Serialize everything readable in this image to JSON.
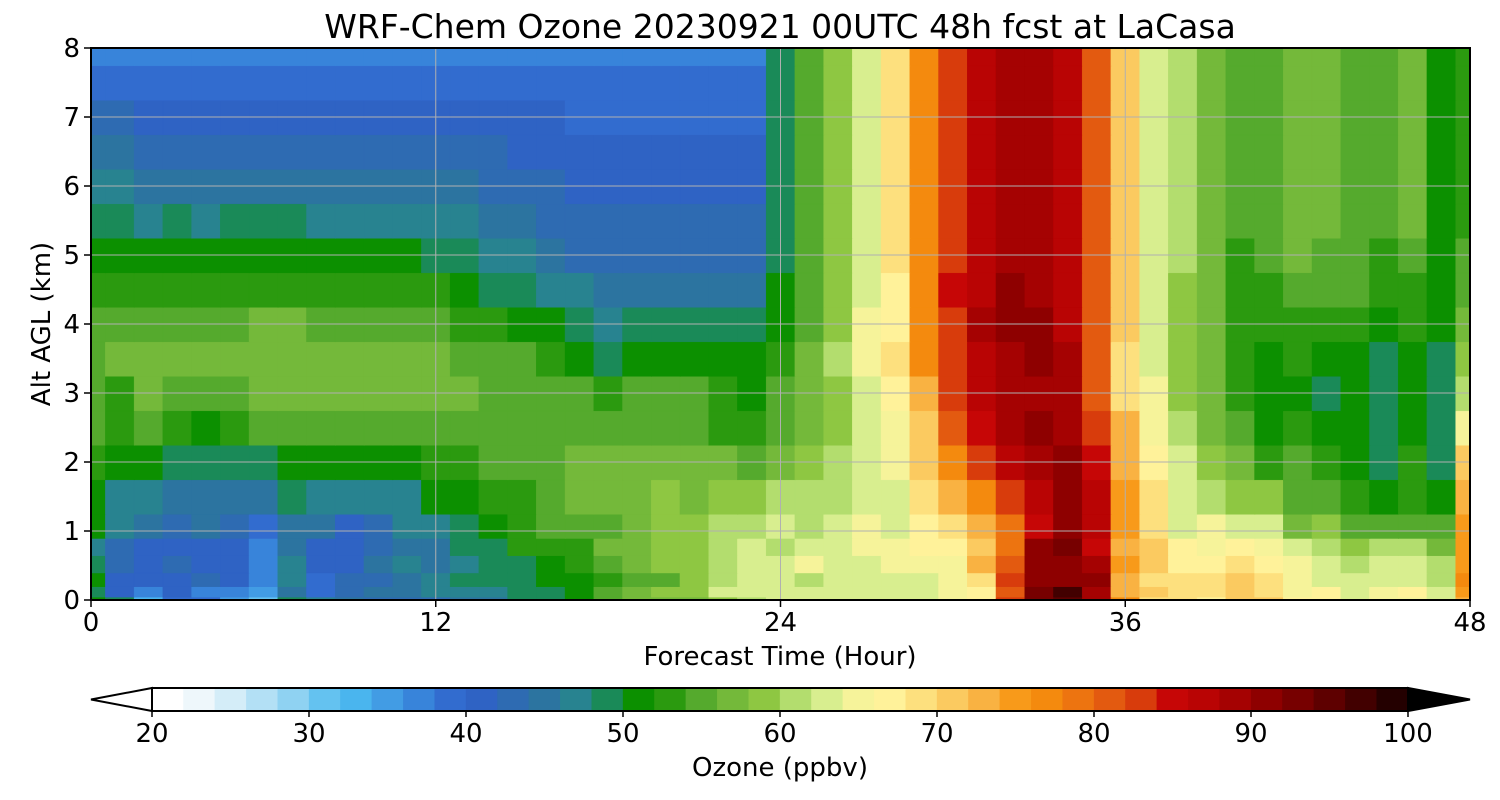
{
  "chart_data": {
    "type": "heatmap",
    "title": "WRF-Chem Ozone  20230921 00UTC 48h fcst at LaCasa",
    "xlabel": "Forecast Time (Hour)",
    "ylabel": "Alt AGL (km)",
    "xlim": [
      0,
      48
    ],
    "ylim": [
      0,
      8
    ],
    "xticks": [
      0,
      12,
      24,
      36,
      48
    ],
    "yticks": [
      0,
      1,
      2,
      3,
      4,
      5,
      6,
      7,
      8
    ],
    "grid": true,
    "colorbar": {
      "label": "Ozone  (ppbv)",
      "min": 20,
      "max": 100,
      "step": 2,
      "ticks": [
        20,
        30,
        40,
        50,
        60,
        70,
        80,
        90,
        100
      ],
      "extend": "both",
      "orientation": "horizontal",
      "colors": [
        "#ffffff",
        "#eef7fb",
        "#d4edf8",
        "#b3e0f5",
        "#8fd2f2",
        "#64c2f0",
        "#4ab5ee",
        "#429ce4",
        "#3884da",
        "#326ccf",
        "#2f63c4",
        "#2e6bb2",
        "#2c74a0",
        "#288390",
        "#1a8a58",
        "#0c9000",
        "#2b9a0f",
        "#55aa2d",
        "#74b93a",
        "#8ec742",
        "#b3dd6e",
        "#d8ee8f",
        "#f6f39a",
        "#fff29a",
        "#fde07e",
        "#fbca60",
        "#f9b242",
        "#f89a1a",
        "#f48a0e",
        "#ed7410",
        "#e35a10",
        "#d83c0c",
        "#c60606",
        "#b90404",
        "#a50202",
        "#8e0000",
        "#770000",
        "#5e0000",
        "#420000",
        "#240000",
        "#000000"
      ]
    },
    "x_hours": [
      0,
      1,
      2,
      3,
      4,
      5,
      6,
      7,
      8,
      9,
      10,
      11,
      12,
      13,
      14,
      15,
      16,
      17,
      18,
      19,
      20,
      21,
      22,
      23,
      24,
      25,
      26,
      27,
      28,
      29,
      30,
      31,
      32,
      33,
      34,
      35,
      36,
      37,
      38,
      39,
      40,
      41,
      42,
      43,
      44,
      45,
      46,
      47,
      48
    ],
    "levels_km": [
      0,
      0.1,
      0.3,
      0.5,
      0.8,
      1,
      1.5,
      2,
      2.5,
      3,
      3.5,
      4,
      4.5,
      5,
      5.5,
      6,
      6.5,
      7,
      7.5,
      8
    ],
    "ozone_ppbv": [
      [
        49,
        47,
        31,
        38,
        38,
        34,
        30,
        48,
        45,
        43,
        41,
        42,
        42,
        44,
        44,
        47,
        48,
        50,
        53,
        55,
        56,
        56,
        58,
        59,
        61,
        61,
        62,
        61,
        61,
        62,
        63,
        65,
        81,
        91,
        93,
        87,
        75,
        68,
        67,
        65,
        69,
        69,
        66,
        65,
        62,
        63,
        64,
        62,
        72
      ],
      [
        48,
        40,
        36,
        39,
        36,
        35,
        34,
        44,
        37,
        42,
        43,
        44,
        45,
        46,
        46,
        47,
        47,
        50,
        53,
        56,
        57,
        57,
        61,
        61,
        61,
        61,
        61,
        61,
        61,
        62,
        64,
        66,
        79,
        92,
        95,
        87,
        72,
        70,
        67,
        67,
        69,
        68,
        64,
        65,
        61,
        63,
        65,
        61,
        73
      ],
      [
        50,
        40,
        40,
        39,
        42,
        39,
        35,
        45,
        38,
        41,
        42,
        44,
        46,
        48,
        47,
        47,
        50,
        50,
        52,
        54,
        54,
        57,
        59,
        61,
        61,
        60,
        62,
        62,
        62,
        62,
        64,
        68,
        82,
        90,
        89,
        89,
        71,
        68,
        68,
        67,
        69,
        67,
        64,
        62,
        61,
        62,
        62,
        59,
        75
      ],
      [
        48,
        41,
        40,
        41,
        40,
        39,
        36,
        45,
        40,
        40,
        44,
        45,
        44,
        46,
        47,
        48,
        50,
        51,
        54,
        55,
        57,
        58,
        59,
        62,
        61,
        63,
        62,
        61,
        63,
        63,
        63,
        71,
        80,
        90,
        90,
        87,
        73,
        70,
        66,
        66,
        67,
        65,
        63,
        62,
        60,
        61,
        62,
        60,
        74
      ],
      [
        46,
        42,
        39,
        40,
        39,
        39,
        36,
        44,
        40,
        40,
        42,
        44,
        43,
        47,
        47,
        51,
        51,
        51,
        55,
        56,
        57,
        57,
        60,
        62,
        60,
        61,
        61,
        63,
        64,
        65,
        66,
        70,
        78,
        89,
        91,
        83,
        72,
        70,
        65,
        64,
        65,
        63,
        61,
        60,
        57,
        59,
        60,
        56,
        74
      ],
      [
        49,
        45,
        43,
        41,
        43,
        41,
        37,
        44,
        43,
        40,
        41,
        45,
        46,
        47,
        49,
        51,
        53,
        53,
        54,
        55,
        57,
        58,
        59,
        60,
        61,
        60,
        61,
        63,
        62,
        65,
        68,
        72,
        77,
        84,
        90,
        85,
        73,
        68,
        62,
        63,
        62,
        62,
        56,
        57,
        54,
        53,
        54,
        54,
        73
      ],
      [
        50,
        46,
        46,
        44,
        44,
        44,
        43,
        47,
        45,
        46,
        46,
        46,
        50,
        50,
        52,
        52,
        54,
        55,
        56,
        56,
        57,
        56,
        57,
        57,
        59,
        59,
        60,
        62,
        62,
        67,
        72,
        75,
        81,
        86,
        89,
        85,
        74,
        67,
        61,
        59,
        58,
        57,
        53,
        54,
        51,
        50,
        51,
        49,
        71
      ],
      [
        52,
        49,
        49,
        48,
        47,
        48,
        48,
        50,
        49,
        49,
        49,
        50,
        52,
        52,
        53,
        54,
        54,
        56,
        56,
        55,
        56,
        55,
        55,
        53,
        56,
        58,
        59,
        61,
        63,
        69,
        76,
        81,
        86,
        87,
        89,
        84,
        72,
        66,
        61,
        57,
        55,
        52,
        53,
        52,
        50,
        48,
        51,
        48,
        69
      ],
      [
        53,
        51,
        53,
        52,
        50,
        52,
        53,
        53,
        53,
        53,
        53,
        53,
        54,
        54,
        53,
        53,
        53,
        53,
        54,
        54,
        54,
        53,
        51,
        52,
        54,
        56,
        58,
        61,
        64,
        70,
        79,
        83,
        87,
        89,
        87,
        82,
        71,
        64,
        59,
        56,
        53,
        50,
        51,
        50,
        50,
        48,
        49,
        48,
        64
      ],
      [
        53,
        52,
        55,
        54,
        53,
        54,
        55,
        55,
        55,
        55,
        55,
        55,
        55,
        55,
        54,
        54,
        54,
        53,
        52,
        53,
        53,
        53,
        51,
        50,
        53,
        55,
        57,
        61,
        65,
        72,
        81,
        85,
        88,
        88,
        88,
        80,
        68,
        63,
        57,
        56,
        52,
        50,
        50,
        48,
        49,
        48,
        49,
        48,
        59
      ],
      [
        54,
        55,
        56,
        56,
        56,
        56,
        56,
        56,
        56,
        56,
        56,
        55,
        55,
        54,
        53,
        53,
        52,
        50,
        48,
        49,
        50,
        49,
        49,
        49,
        52,
        55,
        59,
        63,
        67,
        75,
        82,
        86,
        88,
        89,
        88,
        80,
        68,
        61,
        57,
        55,
        52,
        50,
        51,
        50,
        50,
        48,
        50,
        48,
        57
      ],
      [
        53,
        54,
        54,
        54,
        54,
        54,
        55,
        55,
        54,
        54,
        54,
        54,
        53,
        52,
        51,
        50,
        49,
        48,
        46,
        47,
        48,
        47,
        47,
        47,
        50,
        54,
        58,
        63,
        66,
        75,
        82,
        87,
        90,
        89,
        86,
        80,
        69,
        62,
        57,
        56,
        52,
        51,
        52,
        51,
        51,
        50,
        51,
        49,
        55
      ],
      [
        52,
        52,
        51,
        52,
        52,
        52,
        52,
        52,
        52,
        52,
        52,
        51,
        51,
        50,
        48,
        47,
        46,
        45,
        43,
        44,
        44,
        44,
        44,
        44,
        49,
        54,
        58,
        62,
        66,
        76,
        83,
        86,
        89,
        88,
        86,
        79,
        69,
        61,
        58,
        56,
        52,
        52,
        54,
        53,
        53,
        51,
        52,
        49,
        54
      ],
      [
        50,
        50,
        49,
        50,
        49,
        50,
        50,
        50,
        49,
        49,
        50,
        49,
        48,
        48,
        46,
        45,
        43,
        42,
        42,
        41,
        42,
        41,
        41,
        41,
        47,
        54,
        58,
        62,
        67,
        76,
        82,
        86,
        88,
        87,
        86,
        79,
        69,
        62,
        59,
        56,
        52,
        53,
        55,
        54,
        54,
        52,
        54,
        50,
        53
      ],
      [
        47,
        47,
        46,
        47,
        46,
        47,
        47,
        47,
        46,
        46,
        46,
        46,
        45,
        45,
        43,
        43,
        42,
        41,
        41,
        41,
        41,
        41,
        41,
        41,
        47,
        54,
        58,
        62,
        67,
        76,
        82,
        86,
        88,
        87,
        85,
        79,
        69,
        62,
        59,
        56,
        53,
        53,
        55,
        55,
        54,
        53,
        55,
        50,
        52
      ],
      [
        45,
        45,
        44,
        44,
        44,
        44,
        44,
        44,
        44,
        44,
        44,
        44,
        43,
        43,
        42,
        41,
        41,
        40,
        40,
        40,
        40,
        40,
        40,
        40,
        47,
        54,
        58,
        62,
        67,
        76,
        82,
        86,
        88,
        87,
        85,
        79,
        69,
        62,
        59,
        56,
        53,
        53,
        55,
        55,
        54,
        53,
        55,
        50,
        52
      ],
      [
        43,
        43,
        42,
        42,
        42,
        42,
        42,
        42,
        42,
        42,
        42,
        42,
        41,
        41,
        41,
        40,
        40,
        39,
        39,
        39,
        39,
        39,
        39,
        39,
        47,
        54,
        58,
        62,
        67,
        76,
        82,
        86,
        88,
        87,
        85,
        79,
        69,
        62,
        59,
        56,
        53,
        53,
        55,
        55,
        54,
        53,
        55,
        50,
        52
      ],
      [
        41,
        41,
        40,
        40,
        40,
        40,
        40,
        40,
        40,
        40,
        40,
        40,
        40,
        40,
        40,
        39,
        39,
        38,
        38,
        38,
        38,
        38,
        38,
        38,
        47,
        54,
        58,
        62,
        67,
        76,
        82,
        86,
        88,
        87,
        85,
        79,
        69,
        62,
        59,
        56,
        53,
        53,
        55,
        55,
        54,
        53,
        55,
        50,
        52
      ],
      [
        38,
        38,
        38,
        38,
        38,
        38,
        38,
        38,
        38,
        38,
        38,
        38,
        38,
        38,
        38,
        37,
        37,
        37,
        37,
        37,
        37,
        37,
        37,
        37,
        47,
        54,
        58,
        62,
        67,
        76,
        82,
        86,
        88,
        87,
        85,
        79,
        69,
        62,
        59,
        56,
        53,
        53,
        55,
        55,
        54,
        53,
        55,
        50,
        52
      ],
      [
        36,
        36,
        36,
        36,
        36,
        36,
        36,
        36,
        36,
        36,
        36,
        36,
        36,
        36,
        36,
        36,
        36,
        36,
        36,
        36,
        36,
        36,
        36,
        36,
        47,
        54,
        58,
        62,
        67,
        76,
        82,
        86,
        88,
        87,
        85,
        79,
        69,
        62,
        59,
        56,
        53,
        53,
        55,
        55,
        54,
        53,
        55,
        50,
        52
      ]
    ]
  }
}
